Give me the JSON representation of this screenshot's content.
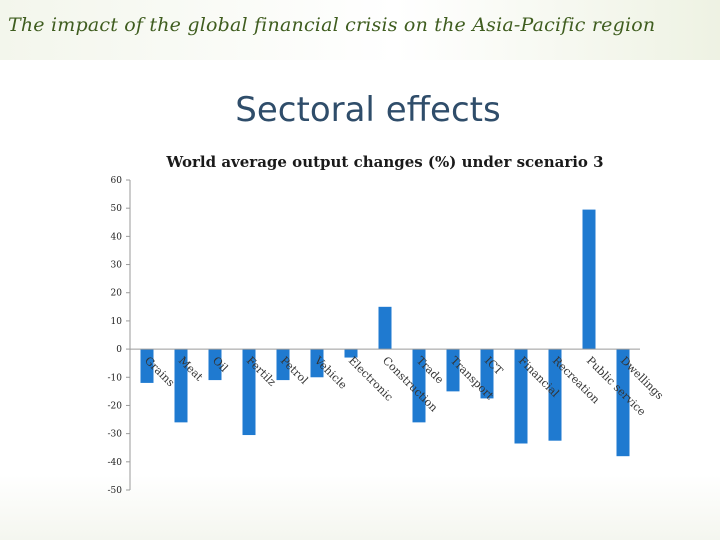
{
  "header": {
    "title": "The impact of the global financial crisis on the Asia-Pacific region"
  },
  "slide": {
    "title": "Sectoral effects"
  },
  "chart_data": {
    "type": "bar",
    "title": "World average output changes (%) under scenario 3",
    "xlabel": "",
    "ylabel": "",
    "ylim": [
      -50,
      60
    ],
    "yticks": [
      60,
      50,
      40,
      30,
      20,
      10,
      0,
      -10,
      -20,
      -30,
      -40,
      -50
    ],
    "grid": false,
    "legend": "none",
    "bar_color": "#1f7ad0",
    "categories": [
      "Grains",
      "Meat",
      "Oil",
      "Fertilz",
      "Petrol",
      "Vehicle",
      "Electronic",
      "Construction",
      "Trade",
      "Transport",
      "ICT",
      "Financial",
      "Recreation",
      "Public service",
      "Dwellings"
    ],
    "values": [
      -12,
      -26,
      -11,
      -30.5,
      -11,
      -10,
      -3,
      15,
      -26,
      -15,
      -17.5,
      -33.5,
      -32.5,
      49.5,
      -38
    ]
  }
}
